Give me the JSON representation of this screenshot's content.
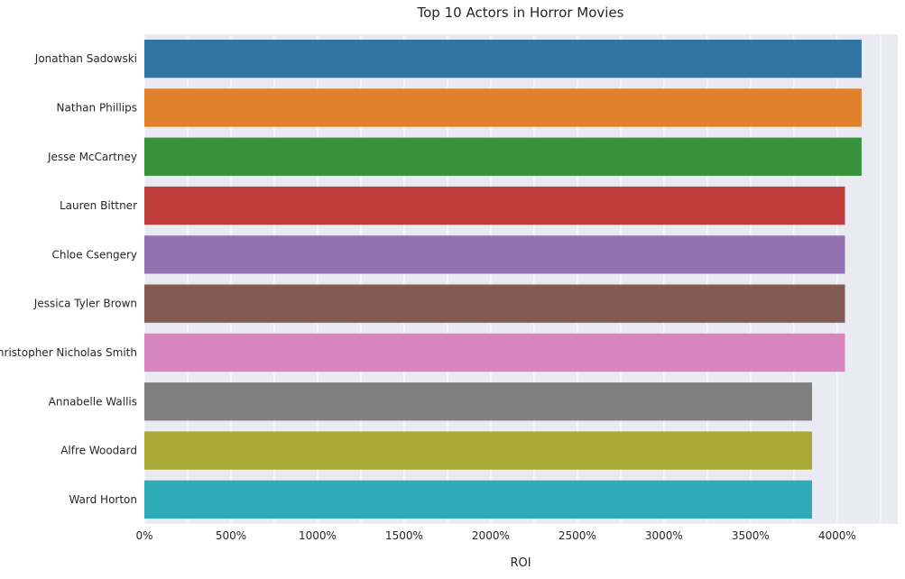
{
  "chart_data": {
    "type": "bar",
    "orientation": "horizontal",
    "title": "Top 10 Actors in Horror Movies",
    "xlabel": "ROI",
    "ylabel": "",
    "xlim": [
      0,
      4350
    ],
    "x_ticks": [
      0,
      500,
      1000,
      1500,
      2000,
      2500,
      3000,
      3500,
      4000
    ],
    "x_tick_labels": [
      "0%",
      "500%",
      "1000%",
      "1500%",
      "2000%",
      "2500%",
      "3000%",
      "3500%",
      "4000%"
    ],
    "grid": true,
    "categories": [
      "Jonathan Sadowski",
      "Nathan Phillips",
      "Jesse McCartney",
      "Lauren Bittner",
      "Chloe Csengery",
      "Jessica Tyler Brown",
      "Christopher Nicholas Smith",
      "Annabelle Wallis",
      "Alfre Woodard",
      "Ward Horton"
    ],
    "values": [
      4141,
      4141,
      4141,
      4045,
      4045,
      4045,
      4045,
      3855,
      3855,
      3855
    ],
    "colors": [
      "#3274a1",
      "#e1812c",
      "#3a923a",
      "#c03d3e",
      "#9372b2",
      "#845b53",
      "#d684bd",
      "#7f7f7f",
      "#a9aa35",
      "#2eabb8"
    ],
    "background_color": "#eaeaf2",
    "grid_color": "#ffffff"
  }
}
